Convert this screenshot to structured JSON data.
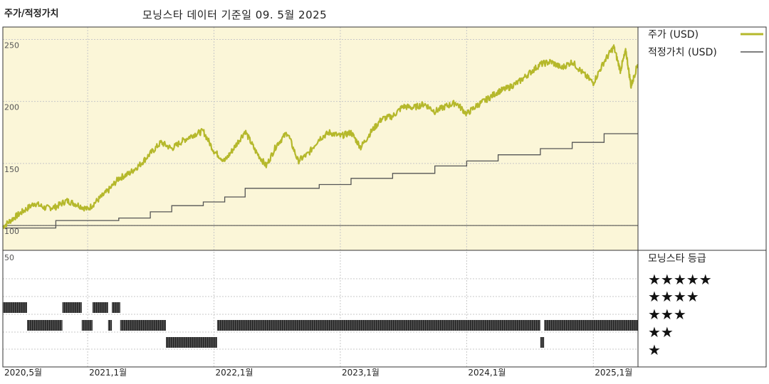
{
  "header": {
    "title": "주가/적정가치",
    "subtitle": "모닝스타 데이터 기준일 09. 5월 2025"
  },
  "colors": {
    "price": "#b5b82b",
    "fair_value": "#555555",
    "top_bg": "#fbf6d8",
    "rating": "#222222"
  },
  "legend": {
    "price": "주가 (USD)",
    "fair_value": "적정가치 (USD)",
    "rating_title": "모닝스타 등급",
    "stars": [
      "★★★★★",
      "★★★★",
      "★★★",
      "★★",
      "★"
    ]
  },
  "chart_data": [
    {
      "type": "line",
      "yticks": [
        100,
        150,
        200,
        250
      ],
      "ylim": [
        80,
        260
      ],
      "xlim": [
        "2020-05-01",
        "2025-05-10"
      ],
      "xticks": [
        {
          "date": "2020-05-01",
          "label": "2020,5월"
        },
        {
          "date": "2021-01-01",
          "label": "2021,1월"
        },
        {
          "date": "2022-01-01",
          "label": "2022,1월"
        },
        {
          "date": "2023-01-01",
          "label": "2023,1월"
        },
        {
          "date": "2024-01-01",
          "label": "2024,1월"
        },
        {
          "date": "2025-01-01",
          "label": "2025,1월"
        }
      ],
      "series": [
        {
          "name": "주가 (USD)",
          "points": [
            [
              "2020-05-01",
              99
            ],
            [
              "2020-06-01",
              106
            ],
            [
              "2020-07-01",
              112
            ],
            [
              "2020-08-01",
              118
            ],
            [
              "2020-09-01",
              114
            ],
            [
              "2020-10-01",
              115
            ],
            [
              "2020-11-01",
              120
            ],
            [
              "2020-12-01",
              117
            ],
            [
              "2021-01-01",
              113
            ],
            [
              "2021-02-01",
              121
            ],
            [
              "2021-03-01",
              128
            ],
            [
              "2021-04-01",
              138
            ],
            [
              "2021-05-01",
              142
            ],
            [
              "2021-06-01",
              149
            ],
            [
              "2021-07-01",
              158
            ],
            [
              "2021-08-01",
              167
            ],
            [
              "2021-09-01",
              162
            ],
            [
              "2021-10-01",
              168
            ],
            [
              "2021-11-01",
              173
            ],
            [
              "2021-12-01",
              176
            ],
            [
              "2022-01-01",
              160
            ],
            [
              "2022-02-01",
              152
            ],
            [
              "2022-03-01",
              163
            ],
            [
              "2022-04-01",
              176
            ],
            [
              "2022-05-01",
              160
            ],
            [
              "2022-06-01",
              148
            ],
            [
              "2022-07-01",
              165
            ],
            [
              "2022-08-01",
              175
            ],
            [
              "2022-09-01",
              152
            ],
            [
              "2022-10-01",
              158
            ],
            [
              "2022-11-01",
              170
            ],
            [
              "2022-12-01",
              175
            ],
            [
              "2023-01-01",
              172
            ],
            [
              "2023-02-01",
              175
            ],
            [
              "2023-03-01",
              163
            ],
            [
              "2023-04-01",
              176
            ],
            [
              "2023-05-01",
              186
            ],
            [
              "2023-06-01",
              188
            ],
            [
              "2023-07-01",
              196
            ],
            [
              "2023-08-01",
              195
            ],
            [
              "2023-09-01",
              198
            ],
            [
              "2023-10-01",
              192
            ],
            [
              "2023-11-01",
              196
            ],
            [
              "2023-12-01",
              199
            ],
            [
              "2024-01-01",
              190
            ],
            [
              "2024-02-01",
              197
            ],
            [
              "2024-03-01",
              202
            ],
            [
              "2024-04-01",
              208
            ],
            [
              "2024-05-01",
              211
            ],
            [
              "2024-06-01",
              216
            ],
            [
              "2024-07-01",
              223
            ],
            [
              "2024-08-01",
              230
            ],
            [
              "2024-09-01",
              232
            ],
            [
              "2024-10-01",
              227
            ],
            [
              "2024-11-01",
              232
            ],
            [
              "2024-12-01",
              223
            ],
            [
              "2025-01-01",
              215
            ],
            [
              "2025-02-01",
              232
            ],
            [
              "2025-03-01",
              244
            ],
            [
              "2025-03-20",
              225
            ],
            [
              "2025-04-05",
              241
            ],
            [
              "2025-04-20",
              212
            ],
            [
              "2025-05-09",
              230
            ]
          ]
        },
        {
          "name": "적정가치 (USD)",
          "steps": [
            [
              "2020-05-01",
              98
            ],
            [
              "2020-10-01",
              104
            ],
            [
              "2021-04-01",
              106
            ],
            [
              "2021-07-01",
              111
            ],
            [
              "2021-09-01",
              116
            ],
            [
              "2021-12-01",
              119
            ],
            [
              "2022-02-01",
              123
            ],
            [
              "2022-04-01",
              130
            ],
            [
              "2022-11-01",
              133
            ],
            [
              "2023-02-01",
              138
            ],
            [
              "2023-06-01",
              142
            ],
            [
              "2023-10-01",
              148
            ],
            [
              "2024-01-01",
              152
            ],
            [
              "2024-04-01",
              157
            ],
            [
              "2024-08-01",
              162
            ],
            [
              "2024-11-01",
              167
            ],
            [
              "2025-02-01",
              174
            ],
            [
              "2025-05-09",
              174
            ]
          ]
        }
      ]
    },
    {
      "type": "bar",
      "ytick": 50,
      "rating_periods": [
        {
          "stars": 3,
          "start": "2020-05-01",
          "end": "2020-07-10"
        },
        {
          "stars": 2,
          "start": "2020-07-10",
          "end": "2020-10-20"
        },
        {
          "stars": 3,
          "start": "2020-10-20",
          "end": "2020-12-15"
        },
        {
          "stars": 2,
          "start": "2020-12-15",
          "end": "2021-01-15"
        },
        {
          "stars": 3,
          "start": "2021-01-15",
          "end": "2021-03-01"
        },
        {
          "stars": 2,
          "start": "2021-03-01",
          "end": "2021-03-12"
        },
        {
          "stars": 3,
          "start": "2021-03-12",
          "end": "2021-04-05"
        },
        {
          "stars": 2,
          "start": "2021-04-05",
          "end": "2021-08-15"
        },
        {
          "stars": 1,
          "start": "2021-08-15",
          "end": "2022-01-10"
        },
        {
          "stars": 2,
          "start": "2022-01-10",
          "end": "2024-08-01"
        },
        {
          "stars": 1,
          "start": "2024-08-01",
          "end": "2024-08-12"
        },
        {
          "stars": 2,
          "start": "2024-08-12",
          "end": "2025-05-09"
        }
      ]
    }
  ]
}
